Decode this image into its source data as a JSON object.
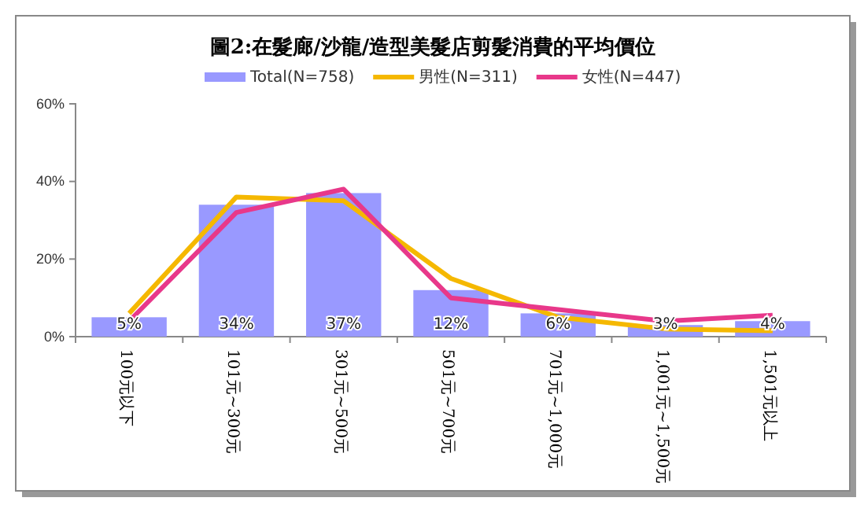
{
  "chart_data": {
    "type": "bar",
    "title": "圖2:在髮廊/沙龍/造型美髮店剪髮消費的平均價位",
    "categories": [
      "100元以下",
      "101元~300元",
      "301元~500元",
      "501元~700元",
      "701元~1,000元",
      "1,001元~1,500元",
      "1,501元以上"
    ],
    "series": [
      {
        "name": "Total(N=758)",
        "color": "#9999ff",
        "values": [
          5,
          34,
          37,
          12,
          6,
          3,
          4
        ],
        "value_labels": [
          "5%",
          "34%",
          "37%",
          "12%",
          "6%",
          "3%",
          "4%"
        ]
      },
      {
        "name": "男性(N=311)",
        "type": "line",
        "color": "#f5b800",
        "values": [
          6,
          36,
          35,
          15,
          5,
          2,
          1.5
        ]
      },
      {
        "name": "女性(N=447)",
        "type": "line",
        "color": "#e8388a",
        "values": [
          4,
          32,
          38,
          10,
          7,
          4,
          5.5
        ]
      }
    ],
    "ylim": [
      0,
      60
    ],
    "yticks": [
      {
        "value": 0,
        "label": "0%"
      },
      {
        "value": 20,
        "label": "20%"
      },
      {
        "value": 40,
        "label": "40%"
      },
      {
        "value": 60,
        "label": "60%"
      }
    ],
    "legend": "top",
    "grid": false,
    "marker": "none",
    "line_style": "solid"
  }
}
